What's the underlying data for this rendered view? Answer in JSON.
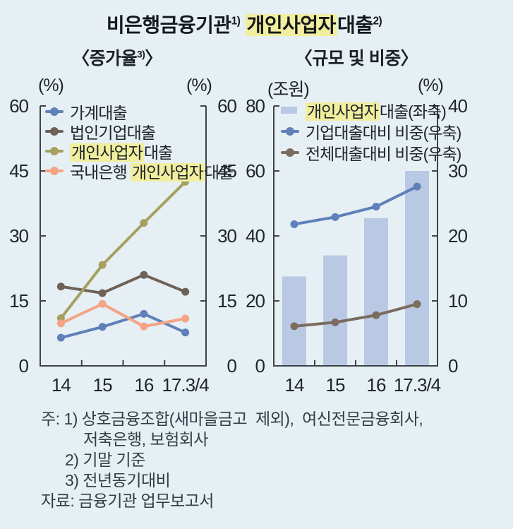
{
  "title": {
    "part1": "비은행금융기관",
    "sup1": "1)",
    "highlight": "개인사업자",
    "part2": "대출",
    "sup2": "2)"
  },
  "subtitles": {
    "left_pre": "〈증가율",
    "left_sup": "3)",
    "left_post": "〉",
    "right": "〈규모 및 비중〉"
  },
  "units": {
    "left_chart_left": "(%)",
    "left_chart_right": "(%)",
    "right_chart_left": "(조원)",
    "right_chart_right": "(%)"
  },
  "legend_left": {
    "item1": "가계대출",
    "item2": "법인기업대출",
    "item3_hl": "개인사업자",
    "item3_rest": "대출",
    "item4_pre": "국내은행 ",
    "item4_hl": "개인사업자",
    "item4_rest": "대출"
  },
  "legend_right": {
    "item1_hl": "개인사업자",
    "item1_rest": "대출(좌축)",
    "item2": "기업대출대비 비중(우축)",
    "item3": "전체대출대비 비중(우축)"
  },
  "notes": {
    "line1": "주: 1) 상호금융조합(새마을금고  제외),  여신전문금융회사,",
    "line2": "저축은행, 보험회사",
    "line3": "2) 기말 기준",
    "line4": "3) 전년동기대비",
    "source": "자료: 금융기관 업무보고서"
  },
  "colors": {
    "background": "#e6eff4",
    "axis": "#3d4349",
    "tick_text": "#1e252b",
    "highlight": "#f1ef9e",
    "household_blue": "#5f80b8",
    "corporate_brown": "#6e6156",
    "soleprop_olive": "#a6a060",
    "bank_salmon": "#f4a484",
    "bar_fill": "#b9c9e4",
    "ratio_corporate_blue": "#5f80b8",
    "ratio_total_brown": "#7a6c5e"
  },
  "chart_data": [
    {
      "type": "line",
      "title": "증가율 (전년동기대비)",
      "categories": [
        "14",
        "15",
        "16",
        "17.3/4"
      ],
      "unit_left": "(%)",
      "unit_right": "(%)",
      "ylim": [
        0,
        60
      ],
      "yticks": [
        0,
        15,
        30,
        45,
        60
      ],
      "legend_position": "top-left-inside",
      "grid": false,
      "series": [
        {
          "name": "가계대출",
          "color": "#5f80b8",
          "values": [
            6.5,
            9.0,
            12.0,
            7.7
          ]
        },
        {
          "name": "법인기업대출",
          "color": "#6e6156",
          "values": [
            18.3,
            16.8,
            21.0,
            17.1
          ]
        },
        {
          "name": "개인사업자대출",
          "color": "#a6a060",
          "values": [
            11.0,
            23.3,
            33.0,
            42.5
          ]
        },
        {
          "name": "국내은행 개인사업자대출",
          "color": "#f4a484",
          "values": [
            9.8,
            14.3,
            9.1,
            10.9
          ]
        }
      ]
    },
    {
      "type": "bar+line",
      "title": "규모 및 비중",
      "categories": [
        "14",
        "15",
        "16",
        "17.3/4"
      ],
      "unit_left": "(조원)",
      "unit_right": "(%)",
      "ylim_left": [
        0,
        80
      ],
      "yticks_left": [
        0,
        20,
        40,
        60,
        80
      ],
      "ylim_right": [
        0,
        40
      ],
      "yticks_right": [
        0,
        10,
        20,
        30,
        40
      ],
      "legend_position": "top-left-inside",
      "grid": false,
      "bar_series": {
        "name": "개인사업자대출(좌축)",
        "axis": "left",
        "color": "#b9c9e4",
        "values": [
          27.5,
          34.0,
          45.5,
          60.0
        ]
      },
      "line_series": [
        {
          "name": "기업대출대비 비중(우축)",
          "axis": "right",
          "color": "#5f80b8",
          "values": [
            21.8,
            22.9,
            24.5,
            27.6
          ]
        },
        {
          "name": "전체대출대비 비중(우축)",
          "axis": "right",
          "color": "#7a6c5e",
          "values": [
            6.1,
            6.7,
            7.8,
            9.5
          ]
        }
      ]
    }
  ]
}
